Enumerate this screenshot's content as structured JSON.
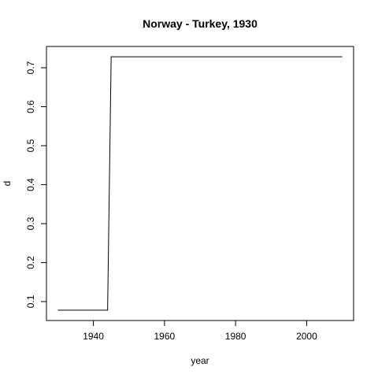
{
  "chart_data": {
    "type": "line",
    "title": "Norway - Turkey, 1930",
    "xlabel": "year",
    "ylabel": "d",
    "xlim": [
      1926.8,
      2013.2
    ],
    "ylim": [
      0.0514,
      0.7546
    ],
    "x_ticks": [
      1940,
      1960,
      1980,
      2000
    ],
    "y_ticks": [
      0.1,
      0.2,
      0.3,
      0.4,
      0.5,
      0.6,
      0.7
    ],
    "grid": false,
    "series": [
      {
        "step": "post",
        "points": [
          [
            1930,
            0.078
          ],
          [
            1944,
            0.078
          ],
          [
            1945,
            0.728
          ],
          [
            2010,
            0.728
          ]
        ]
      }
    ]
  }
}
